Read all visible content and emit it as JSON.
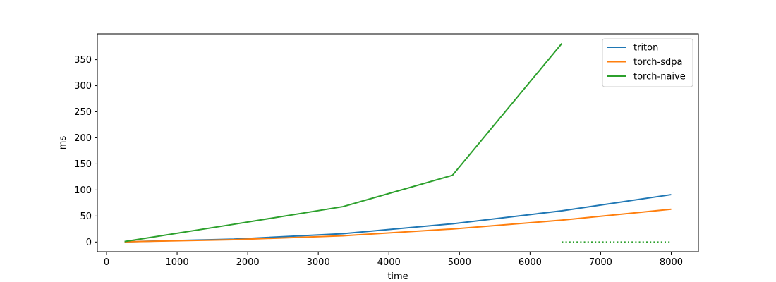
{
  "chart_data": {
    "type": "line",
    "title": "",
    "xlabel": "time",
    "ylabel": "ms",
    "xlim": [
      -130,
      8385
    ],
    "ylim": [
      -18.5,
      399.5
    ],
    "xticks": [
      0,
      1000,
      2000,
      3000,
      4000,
      5000,
      6000,
      7000,
      8000
    ],
    "yticks": [
      0,
      50,
      100,
      150,
      200,
      250,
      300,
      350
    ],
    "grid": false,
    "legend_position": "top-right",
    "colors": {
      "triton": "#1f77b4",
      "torch-sdpa": "#ff7f0e",
      "torch-naive": "#2ca02c"
    },
    "series": [
      {
        "name": "triton",
        "x": [
          256,
          1800,
          3350,
          4900,
          6450,
          8000
        ],
        "y": [
          0.5,
          5.5,
          16,
          35,
          60,
          91
        ]
      },
      {
        "name": "torch-sdpa",
        "x": [
          256,
          1800,
          3350,
          4900,
          6450,
          8000
        ],
        "y": [
          0.5,
          4.5,
          12,
          25,
          42,
          63
        ]
      },
      {
        "name": "torch-naive",
        "x": [
          256,
          1800,
          3350,
          4900,
          6450
        ],
        "y": [
          1,
          34,
          68,
          128,
          381
        ]
      }
    ],
    "extra_lines": [
      {
        "color": "#2ca02c",
        "style": "dotted",
        "x": [
          6450,
          8000
        ],
        "y": [
          0,
          0
        ]
      }
    ]
  }
}
